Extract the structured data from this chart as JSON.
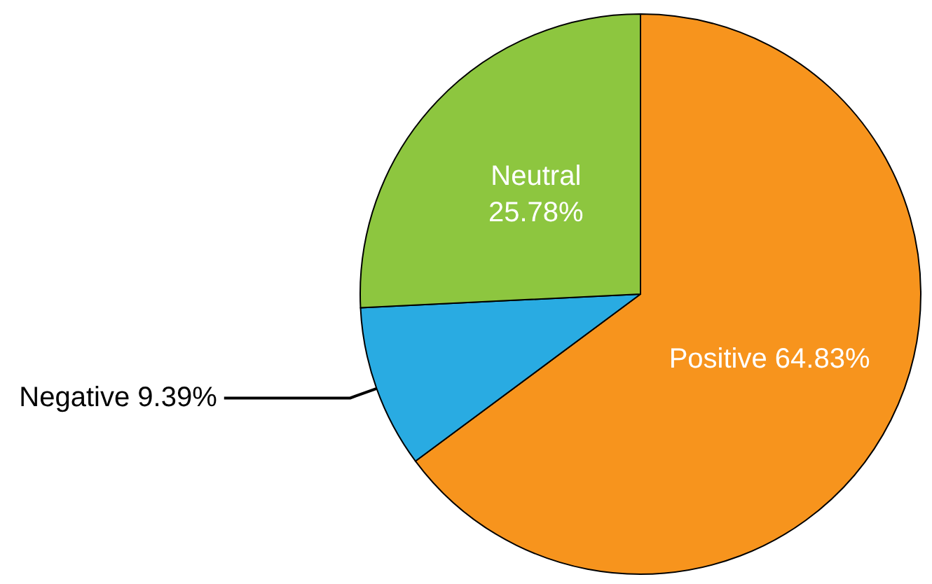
{
  "chart_data": {
    "type": "pie",
    "categories": [
      "Positive",
      "Negative",
      "Neutral"
    ],
    "values": [
      64.83,
      9.39,
      25.78
    ],
    "value_labels": [
      "64.83%",
      "9.39%",
      "25.78%"
    ],
    "colors": [
      "#f7941d",
      "#29abe2",
      "#8dc63f"
    ]
  }
}
